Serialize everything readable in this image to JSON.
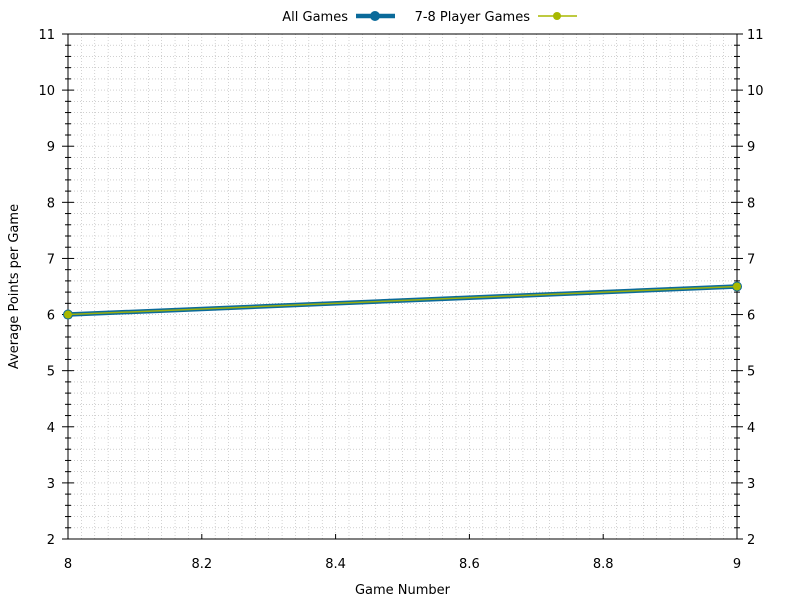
{
  "chart_data": {
    "type": "line",
    "title": "",
    "xlabel": "Game Number",
    "ylabel": "Average Points per Game",
    "xlim": [
      8,
      9
    ],
    "ylim": [
      2,
      11
    ],
    "x_ticks": [
      "8",
      "8.2",
      "8.4",
      "8.6",
      "8.8",
      "9"
    ],
    "y_ticks": [
      "2",
      "3",
      "4",
      "5",
      "6",
      "7",
      "8",
      "9",
      "10",
      "11"
    ],
    "grid": true,
    "mirrored_right_axis": true,
    "legend_position": "top-center",
    "series": [
      {
        "name": "All Games",
        "color": "#0a6a9a",
        "x": [
          8,
          9
        ],
        "values": [
          6.0,
          6.5
        ]
      },
      {
        "name": "7-8 Player Games",
        "color": "#a8b800",
        "x": [
          8,
          9
        ],
        "values": [
          6.0,
          6.5
        ]
      }
    ]
  }
}
